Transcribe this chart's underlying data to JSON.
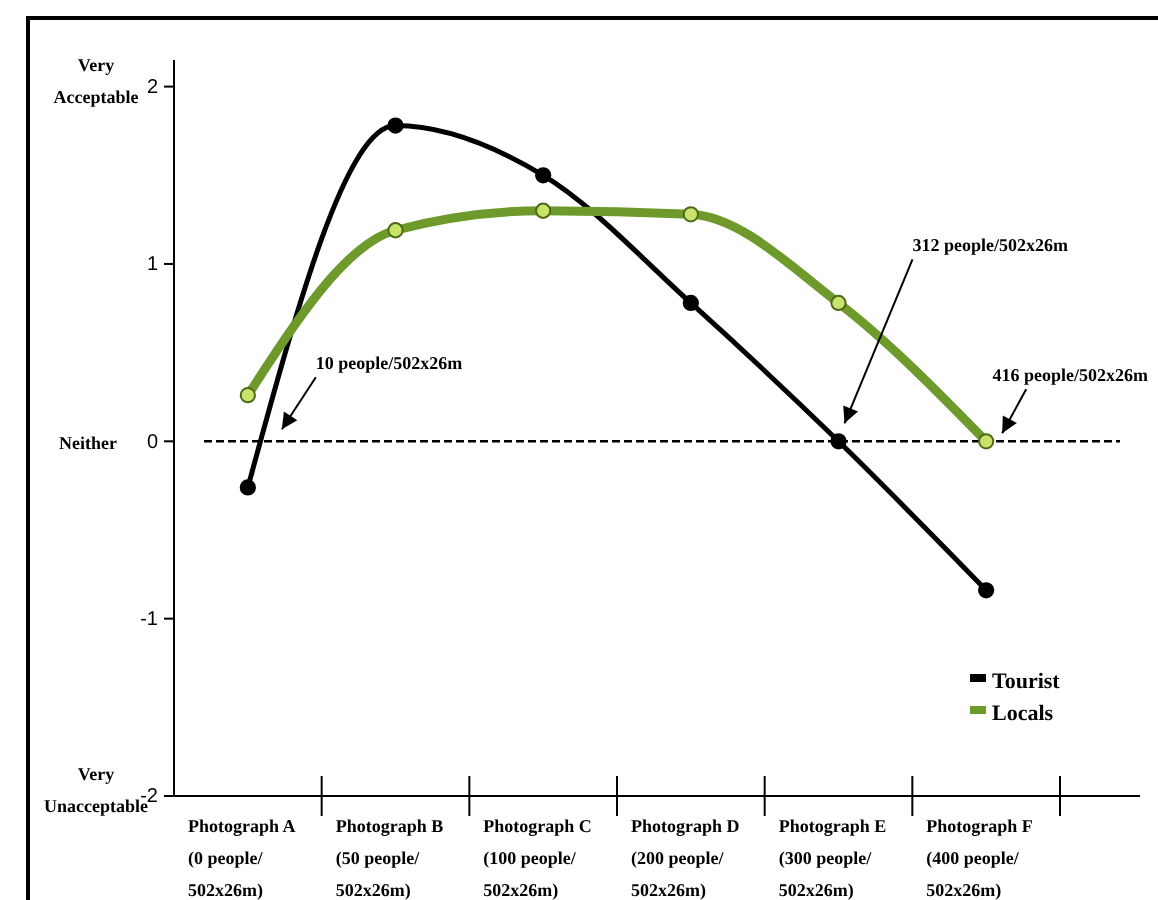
{
  "chart_data": {
    "type": "line",
    "categories": [
      "Photograph A\n(0 people/\n502x26m)",
      "Photograph B\n(50 people/\n502x26m)",
      "Photograph C\n(100 people/\n502x26m)",
      "Photograph D\n(200 people/\n502x26m)",
      "Photograph E\n(300 people/\n502x26m)",
      "Photograph F\n(400 people/\n502x26m)"
    ],
    "series": [
      {
        "name": "Tourist",
        "color": "#000000",
        "values": [
          -0.26,
          1.78,
          1.5,
          0.78,
          0,
          -0.84
        ]
      },
      {
        "name": "Locals",
        "color": "#6e9a2c",
        "values": [
          0.26,
          1.19,
          1.3,
          1.28,
          0.78,
          0
        ]
      }
    ],
    "ylim": [
      -2,
      2.15
    ],
    "yticks": [
      -2,
      -1,
      0,
      1,
      2
    ],
    "ref_lines": [
      {
        "axis": "y",
        "value": 0,
        "line_style": "dashed",
        "color": "#000000"
      }
    ],
    "annotations": [
      "Very Acceptable",
      "Neither",
      "Very Unacceptable",
      "10 people/502x26m",
      "312 people/502x26m",
      "416 people/502x26m"
    ],
    "marker": "circle",
    "line_style": "solid",
    "legend": "bottom right",
    "grid": false
  }
}
